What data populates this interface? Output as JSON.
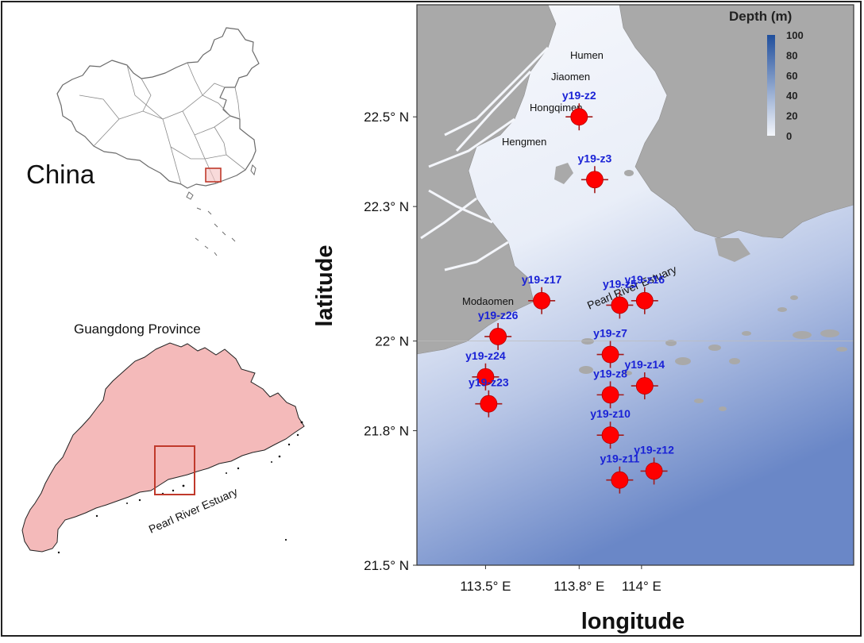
{
  "inset_china": {
    "label": "China"
  },
  "inset_guangdong": {
    "label": "Guangdong Province",
    "estuary_label": "Pearl River Estuary"
  },
  "main_map": {
    "xlabel": "longitude",
    "ylabel": "latitude",
    "lon_ticks": [
      {
        "value": 113.5,
        "label": "113.5° E"
      },
      {
        "value": 113.8,
        "label": "113.8° E"
      },
      {
        "value": 114.0,
        "label": "114° E"
      }
    ],
    "lat_ticks": [
      {
        "value": 22.5,
        "label": "22.5° N"
      },
      {
        "value": 22.3,
        "label": "22.3° N"
      },
      {
        "value": 22.0,
        "label": "22° N"
      },
      {
        "value": 21.8,
        "label": "21.8° N"
      },
      {
        "value": 21.5,
        "label": "21.5° N"
      }
    ],
    "lon_range": [
      113.28,
      114.68
    ],
    "lat_range": [
      21.5,
      22.75
    ],
    "legend": {
      "title": "Depth (m)",
      "ticks": [
        "100",
        "80",
        "60",
        "40",
        "20",
        "0"
      ],
      "color_low": "#f4f6fb",
      "color_high": "#1f4e9c",
      "placement": "top-right"
    },
    "estuary_label": "Pearl River Estuary",
    "outlet_labels": [
      "Humen",
      "Jiaomen",
      "Hongqimen",
      "Hengmen",
      "Modaomen"
    ],
    "land_color": "#a9a9a9",
    "marker_color": "#ff0000",
    "label_color": "#1a22d6"
  },
  "stations": [
    {
      "id": "y19-z2",
      "lon": 113.8,
      "lat": 22.5
    },
    {
      "id": "y19-z3",
      "lon": 113.85,
      "lat": 22.36
    },
    {
      "id": "y19-z17",
      "lon": 113.68,
      "lat": 22.09
    },
    {
      "id": "y19-z5",
      "lon": 113.93,
      "lat": 22.08
    },
    {
      "id": "y19-z16",
      "lon": 114.01,
      "lat": 22.09
    },
    {
      "id": "y19-z26",
      "lon": 113.54,
      "lat": 22.01
    },
    {
      "id": "y19-z7",
      "lon": 113.9,
      "lat": 21.97
    },
    {
      "id": "y19-z24",
      "lon": 113.5,
      "lat": 21.92
    },
    {
      "id": "y19-z8",
      "lon": 113.9,
      "lat": 21.88
    },
    {
      "id": "y19-z14",
      "lon": 114.01,
      "lat": 21.9
    },
    {
      "id": "y19-z23",
      "lon": 113.51,
      "lat": 21.86
    },
    {
      "id": "y19-z10",
      "lon": 113.9,
      "lat": 21.79
    },
    {
      "id": "y19-z11",
      "lon": 113.93,
      "lat": 21.69
    },
    {
      "id": "y19-z12",
      "lon": 114.04,
      "lat": 21.71
    }
  ]
}
